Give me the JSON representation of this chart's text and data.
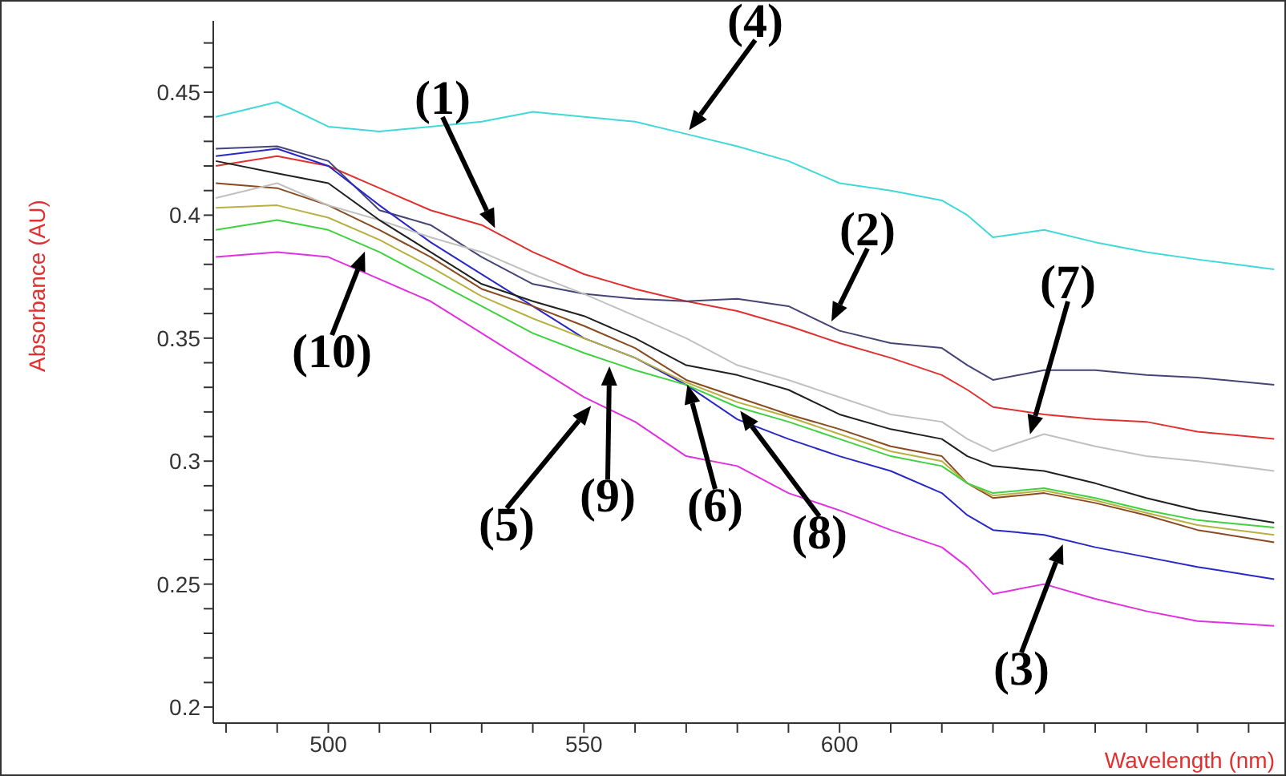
{
  "chart_data": {
    "type": "line",
    "xlabel": "Wavelength (nm)",
    "ylabel": "Absorbance (AU)",
    "x": [
      478,
      490,
      500,
      510,
      520,
      530,
      540,
      550,
      560,
      570,
      580,
      590,
      600,
      610,
      620,
      625,
      630,
      640,
      650,
      660,
      670,
      685
    ],
    "series": [
      {
        "color": "#e03030",
        "values": [
          0.42,
          0.424,
          0.42,
          0.411,
          0.402,
          0.396,
          0.385,
          0.376,
          0.37,
          0.365,
          0.361,
          0.355,
          0.348,
          0.342,
          0.335,
          0.329,
          0.322,
          0.319,
          0.317,
          0.316,
          0.312,
          0.309
        ]
      },
      {
        "color": "#454575",
        "values": [
          0.427,
          0.428,
          0.422,
          0.402,
          0.396,
          0.383,
          0.372,
          0.368,
          0.366,
          0.365,
          0.366,
          0.363,
          0.353,
          0.348,
          0.346,
          0.339,
          0.333,
          0.337,
          0.337,
          0.335,
          0.334,
          0.331
        ]
      },
      {
        "color": "#2828c8",
        "values": [
          0.424,
          0.427,
          0.42,
          0.404,
          0.389,
          0.376,
          0.363,
          0.35,
          0.342,
          0.331,
          0.317,
          0.309,
          0.302,
          0.296,
          0.287,
          0.278,
          0.272,
          0.27,
          0.265,
          0.261,
          0.257,
          0.252
        ]
      },
      {
        "color": "#40d8d8",
        "values": [
          0.44,
          0.446,
          0.436,
          0.434,
          0.436,
          0.438,
          0.442,
          0.44,
          0.438,
          0.433,
          0.428,
          0.422,
          0.413,
          0.41,
          0.406,
          0.4,
          0.391,
          0.394,
          0.389,
          0.385,
          0.382,
          0.378
        ]
      },
      {
        "color": "#e030e0",
        "values": [
          0.383,
          0.385,
          0.383,
          0.374,
          0.365,
          0.352,
          0.339,
          0.326,
          0.316,
          0.302,
          0.298,
          0.287,
          0.28,
          0.272,
          0.265,
          0.257,
          0.246,
          0.25,
          0.244,
          0.239,
          0.235,
          0.233
        ]
      },
      {
        "color": "#8a4a20",
        "values": [
          0.413,
          0.411,
          0.404,
          0.394,
          0.383,
          0.37,
          0.363,
          0.355,
          0.346,
          0.333,
          0.326,
          0.319,
          0.313,
          0.306,
          0.302,
          0.291,
          0.285,
          0.287,
          0.283,
          0.278,
          0.272,
          0.267
        ]
      },
      {
        "color": "#c0c0c0",
        "values": [
          0.407,
          0.413,
          0.404,
          0.398,
          0.391,
          0.385,
          0.376,
          0.368,
          0.359,
          0.35,
          0.339,
          0.333,
          0.326,
          0.319,
          0.316,
          0.309,
          0.304,
          0.311,
          0.306,
          0.302,
          0.3,
          0.296
        ]
      },
      {
        "color": "#b8b040",
        "values": [
          0.403,
          0.404,
          0.399,
          0.39,
          0.379,
          0.367,
          0.358,
          0.35,
          0.342,
          0.332,
          0.324,
          0.318,
          0.311,
          0.304,
          0.3,
          0.291,
          0.286,
          0.288,
          0.284,
          0.279,
          0.274,
          0.27
        ]
      },
      {
        "color": "#40d040",
        "values": [
          0.394,
          0.398,
          0.394,
          0.385,
          0.374,
          0.363,
          0.352,
          0.344,
          0.337,
          0.331,
          0.322,
          0.316,
          0.309,
          0.302,
          0.298,
          0.291,
          0.287,
          0.289,
          0.285,
          0.28,
          0.276,
          0.273
        ]
      },
      {
        "color": "#202020",
        "values": [
          0.422,
          0.417,
          0.413,
          0.398,
          0.385,
          0.372,
          0.365,
          0.359,
          0.35,
          0.339,
          0.335,
          0.329,
          0.319,
          0.313,
          0.309,
          0.302,
          0.298,
          0.296,
          0.291,
          0.285,
          0.28,
          0.275
        ]
      }
    ],
    "xlim": [
      477.5,
      687
    ],
    "ylim": [
      0.1935,
      0.479
    ],
    "xticks": [
      {
        "value": 480,
        "label": null
      },
      {
        "value": 490,
        "label": null
      },
      500,
      {
        "value": 510,
        "label": null
      },
      {
        "value": 520,
        "label": null
      },
      {
        "value": 530,
        "label": null
      },
      {
        "value": 540,
        "label": null
      },
      550,
      {
        "value": 560,
        "label": null
      },
      {
        "value": 570,
        "label": null
      },
      {
        "value": 580,
        "label": null
      },
      {
        "value": 590,
        "label": null
      },
      600,
      {
        "value": 610,
        "label": null
      },
      {
        "value": 620,
        "label": null
      },
      {
        "value": 630,
        "label": null
      },
      {
        "value": 640,
        "label": null
      },
      {
        "value": 650,
        "label": null
      },
      {
        "value": 660,
        "label": null
      },
      {
        "value": 670,
        "label": null
      },
      {
        "value": 680,
        "label": null
      }
    ],
    "yticks": [
      0.2,
      {
        "value": 0.21,
        "label": null
      },
      {
        "value": 0.22,
        "label": null
      },
      {
        "value": 0.23,
        "label": null
      },
      {
        "value": 0.24,
        "label": null
      },
      0.25,
      {
        "value": 0.26,
        "label": null
      },
      {
        "value": 0.27,
        "label": null
      },
      {
        "value": 0.28,
        "label": null
      },
      {
        "value": 0.29,
        "label": null
      },
      0.3,
      {
        "value": 0.31,
        "label": null
      },
      {
        "value": 0.32,
        "label": null
      },
      {
        "value": 0.33,
        "label": null
      },
      {
        "value": 0.34,
        "label": null
      },
      0.35,
      {
        "value": 0.36,
        "label": null
      },
      {
        "value": 0.37,
        "label": null
      },
      {
        "value": 0.38,
        "label": null
      },
      {
        "value": 0.39,
        "label": null
      },
      0.4,
      {
        "value": 0.41,
        "label": null
      },
      {
        "value": 0.42,
        "label": null
      },
      {
        "value": 0.43,
        "label": null
      },
      {
        "value": 0.44,
        "label": null
      },
      0.45,
      {
        "value": 0.46,
        "label": null
      },
      {
        "value": 0.47,
        "label": null
      }
    ],
    "annotations": [
      {
        "text": "(1)",
        "x": 533,
        "y": 0.393
      },
      {
        "text": "(2)",
        "x": 598,
        "y": 0.355
      },
      {
        "text": "(3)",
        "x": 644,
        "y": 0.268
      },
      {
        "text": "(4)",
        "x": 570,
        "y": 0.433
      },
      {
        "text": "(5)",
        "x": 552,
        "y": 0.324
      },
      {
        "text": "(6)",
        "x": 570,
        "y": 0.333
      },
      {
        "text": "(7)",
        "x": 637,
        "y": 0.309
      },
      {
        "text": "(8)",
        "x": 580,
        "y": 0.322
      },
      {
        "text": "(9)",
        "x": 555,
        "y": 0.3405
      },
      {
        "text": "(10)",
        "x": 507.5,
        "y": 0.387
      }
    ]
  }
}
